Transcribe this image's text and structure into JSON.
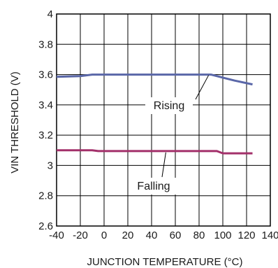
{
  "chart_data": {
    "type": "line",
    "xlabel": "JUNCTION TEMPERATURE (°C)",
    "ylabel": "VIN THRESHOLD (V)",
    "xlim": [
      -40,
      140
    ],
    "ylim": [
      2.6,
      4
    ],
    "grid": true,
    "x_ticks": [
      -40,
      -20,
      0,
      20,
      40,
      60,
      80,
      100,
      120,
      140
    ],
    "y_ticks": [
      2.6,
      2.8,
      3,
      3.2,
      3.4,
      3.6,
      3.8,
      4
    ],
    "x_tick_labels": [
      "-40",
      "-20",
      "0",
      "20",
      "40",
      "60",
      "80",
      "100",
      "120",
      "140"
    ],
    "y_tick_labels": [
      "2.6",
      "2.8",
      "3",
      "3.2",
      "3.4",
      "3.6",
      "3.8",
      "4"
    ],
    "series": [
      {
        "name": "Rising",
        "color": "#5a67a8",
        "x": [
          -40,
          -20,
          -10,
          0,
          20,
          40,
          60,
          80,
          90,
          100,
          110,
          125
        ],
        "y": [
          3.585,
          3.59,
          3.6,
          3.6,
          3.6,
          3.6,
          3.6,
          3.6,
          3.6,
          3.58,
          3.56,
          3.535
        ]
      },
      {
        "name": "Falling",
        "color": "#a3306a",
        "x": [
          -40,
          -20,
          -10,
          -5,
          0,
          20,
          40,
          60,
          80,
          95,
          100,
          110,
          125
        ],
        "y": [
          3.1,
          3.1,
          3.1,
          3.095,
          3.095,
          3.095,
          3.095,
          3.095,
          3.095,
          3.095,
          3.08,
          3.08,
          3.08
        ]
      }
    ],
    "annotations": [
      {
        "text": "Rising",
        "series": "Rising"
      },
      {
        "text": "Falling",
        "series": "Falling"
      }
    ]
  }
}
